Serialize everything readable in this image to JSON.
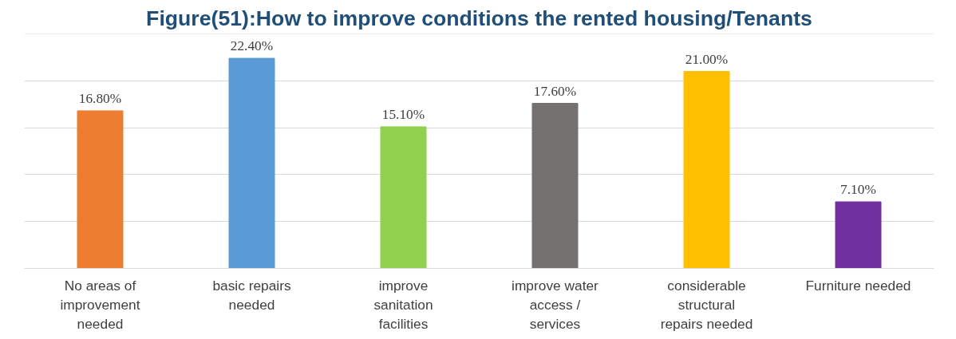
{
  "chart_data": {
    "type": "bar",
    "title": "Figure(51):How to improve conditions the rented housing/Tenants",
    "categories": [
      "No areas of improvement needed",
      "basic repairs needed",
      "improve sanitation facilities",
      "improve water access / services",
      "considerable structural repairs needed",
      "Furniture needed"
    ],
    "values": [
      16.8,
      22.4,
      15.1,
      17.6,
      21.0,
      7.1
    ],
    "colors": [
      "#ed7d31",
      "#5b9bd5",
      "#92d050",
      "#767171",
      "#ffc000",
      "#7030a0"
    ],
    "value_labels": [
      "16.80%",
      "22.40%",
      "15.10%",
      "17.60%",
      "21.00%",
      "7.10%"
    ],
    "ylim": [
      0,
      25
    ],
    "yticks": [
      {
        "value": 0,
        "label": null
      },
      {
        "value": 5,
        "label": null
      },
      {
        "value": 10,
        "label": null
      },
      {
        "value": 15,
        "label": null
      },
      {
        "value": 20,
        "label": null
      },
      {
        "value": 25,
        "label": null
      }
    ],
    "grid": "y",
    "tick_labels": "x"
  }
}
